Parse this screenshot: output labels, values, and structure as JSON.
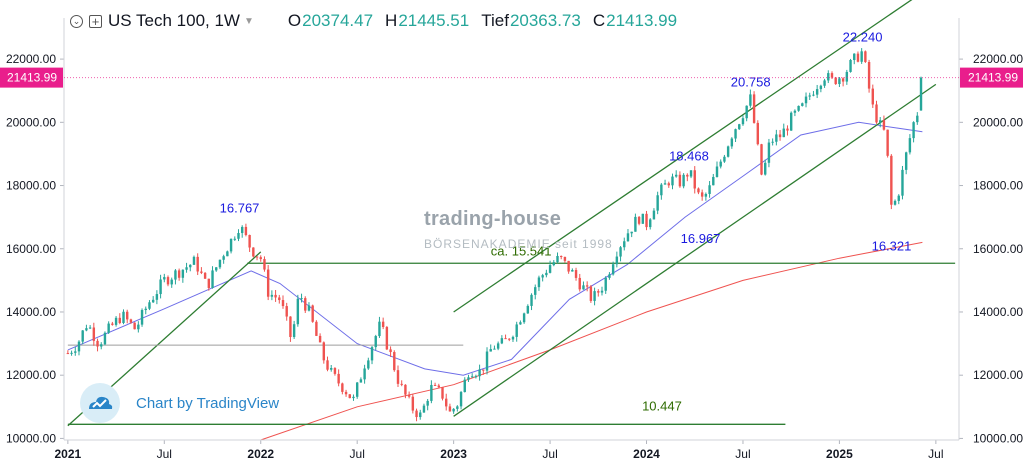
{
  "header": {
    "symbol": "US Tech 100, 1W",
    "o_label": "O",
    "o_value": "20374.47",
    "h_label": "H",
    "h_value": "21445.51",
    "l_label": "Tief",
    "l_value": "20363.73",
    "c_label": "C",
    "c_value": "21413.99",
    "icons": [
      "collapse-icon",
      "add-icon",
      "dropdown-caret-icon"
    ]
  },
  "watermark": {
    "brand": "trading-house",
    "sub": "BÖRSENAKADEMIE seit 1998"
  },
  "credit": {
    "text": "Chart by TradingView",
    "icon": "tradingview-logo-icon"
  },
  "colors": {
    "up": "#26a69a",
    "down": "#ef5350",
    "channel": "#2e7d32",
    "ma_short": "#6e6ee8",
    "ma_long": "#ef5350",
    "price_tag": "#e91e8c",
    "label_blue": "#1a1adf",
    "label_green": "#2e6b00"
  },
  "chart_data": {
    "type": "candlestick",
    "timeframe": "1W",
    "ylim": [
      9950,
      23300
    ],
    "yticks": [
      "22000.00",
      "20000.00",
      "18000.00",
      "16000.00",
      "14000.00",
      "12000.00",
      "10000.00"
    ],
    "yticks_values": [
      22000,
      20000,
      18000,
      16000,
      14000,
      12000,
      10000
    ],
    "xticks": [
      "2021",
      "Jul",
      "2022",
      "Jul",
      "2023",
      "Jul",
      "2024",
      "Jul",
      "2025",
      "Jul"
    ],
    "xticks_values": [
      2021.0,
      2021.5,
      2022.0,
      2022.5,
      2023.0,
      2023.5,
      2024.0,
      2024.5,
      2025.0,
      2025.5
    ],
    "xlim": [
      2020.98,
      2025.62
    ],
    "last_price": "21413.99",
    "last_price_value": 21413.99,
    "price_path": [
      [
        2021.0,
        12700
      ],
      [
        2021.05,
        13000
      ],
      [
        2021.1,
        13650
      ],
      [
        2021.16,
        13000
      ],
      [
        2021.22,
        13500
      ],
      [
        2021.28,
        13900
      ],
      [
        2021.35,
        13450
      ],
      [
        2021.42,
        14300
      ],
      [
        2021.5,
        15000
      ],
      [
        2021.58,
        15300
      ],
      [
        2021.66,
        15600
      ],
      [
        2021.72,
        14800
      ],
      [
        2021.8,
        15800
      ],
      [
        2021.85,
        16300
      ],
      [
        2021.89,
        16767
      ],
      [
        2021.95,
        16000
      ],
      [
        2022.0,
        15700
      ],
      [
        2022.04,
        14600
      ],
      [
        2022.1,
        14400
      ],
      [
        2022.16,
        13100
      ],
      [
        2022.2,
        14600
      ],
      [
        2022.25,
        14000
      ],
      [
        2022.32,
        12600
      ],
      [
        2022.37,
        12000
      ],
      [
        2022.43,
        11600
      ],
      [
        2022.48,
        11200
      ],
      [
        2022.54,
        12400
      ],
      [
        2022.62,
        13600
      ],
      [
        2022.67,
        12700
      ],
      [
        2022.72,
        11700
      ],
      [
        2022.78,
        11000
      ],
      [
        2022.83,
        10700
      ],
      [
        2022.88,
        11600
      ],
      [
        2022.94,
        11400
      ],
      [
        2022.98,
        10800
      ],
      [
        2023.02,
        11100
      ],
      [
        2023.08,
        12200
      ],
      [
        2023.14,
        12100
      ],
      [
        2023.2,
        12900
      ],
      [
        2023.26,
        13000
      ],
      [
        2023.32,
        13500
      ],
      [
        2023.38,
        14300
      ],
      [
        2023.44,
        15000
      ],
      [
        2023.5,
        15500
      ],
      [
        2023.55,
        15700
      ],
      [
        2023.62,
        15200
      ],
      [
        2023.68,
        14700
      ],
      [
        2023.72,
        14400
      ],
      [
        2023.78,
        14900
      ],
      [
        2023.84,
        15900
      ],
      [
        2023.9,
        16500
      ],
      [
        2023.96,
        17000
      ],
      [
        2024.0,
        16800
      ],
      [
        2024.06,
        17700
      ],
      [
        2024.12,
        18200
      ],
      [
        2024.18,
        18100
      ],
      [
        2024.22,
        18468
      ],
      [
        2024.28,
        17500
      ],
      [
        2024.32,
        17800
      ],
      [
        2024.38,
        18700
      ],
      [
        2024.44,
        19600
      ],
      [
        2024.5,
        20300
      ],
      [
        2024.54,
        20758
      ],
      [
        2024.58,
        19000
      ],
      [
        2024.6,
        18200
      ],
      [
        2024.64,
        19400
      ],
      [
        2024.7,
        19600
      ],
      [
        2024.76,
        20200
      ],
      [
        2024.8,
        20400
      ],
      [
        2024.86,
        21000
      ],
      [
        2024.92,
        21500
      ],
      [
        2024.96,
        21300
      ],
      [
        2025.02,
        21500
      ],
      [
        2025.08,
        22000
      ],
      [
        2025.12,
        22240
      ],
      [
        2025.17,
        20500
      ],
      [
        2025.21,
        19900
      ],
      [
        2025.24,
        19600
      ],
      [
        2025.27,
        17300
      ],
      [
        2025.3,
        17600
      ],
      [
        2025.34,
        18800
      ],
      [
        2025.38,
        19900
      ],
      [
        2025.41,
        20400
      ],
      [
        2025.435,
        21414
      ]
    ],
    "moving_averages": [
      {
        "color": "#6e6ee8",
        "points": [
          [
            2021.0,
            12800
          ],
          [
            2021.5,
            14100
          ],
          [
            2021.95,
            15300
          ],
          [
            2022.1,
            14900
          ],
          [
            2022.5,
            13000
          ],
          [
            2022.85,
            12200
          ],
          [
            2023.05,
            12000
          ],
          [
            2023.3,
            12500
          ],
          [
            2023.6,
            14400
          ],
          [
            2023.9,
            15500
          ],
          [
            2024.2,
            17000
          ],
          [
            2024.5,
            18300
          ],
          [
            2024.8,
            19600
          ],
          [
            2025.1,
            20000
          ],
          [
            2025.43,
            19700
          ]
        ]
      },
      {
        "color": "#ef5350",
        "points": [
          [
            2022.0,
            9950
          ],
          [
            2022.5,
            11000
          ],
          [
            2023.0,
            11700
          ],
          [
            2023.5,
            12800
          ],
          [
            2024.0,
            14000
          ],
          [
            2024.5,
            15000
          ],
          [
            2025.0,
            15700
          ],
          [
            2025.43,
            16200
          ]
        ]
      }
    ],
    "lines": [
      {
        "color": "#2e7d32",
        "from": [
          2021.0,
          10400
        ],
        "to": [
          2022.0,
          15900
        ]
      },
      {
        "color": "#2e7d32",
        "from": [
          2023.0,
          10700
        ],
        "to": [
          2025.5,
          21200
        ]
      },
      {
        "color": "#2e7d32",
        "from": [
          2023.0,
          14000
        ],
        "to": [
          2025.5,
          24400
        ]
      },
      {
        "color": "#2e7d32",
        "from": [
          2021.93,
          15541
        ],
        "to": [
          2025.6,
          15541
        ]
      },
      {
        "color": "#2e7d32",
        "from": [
          2021.0,
          10447
        ],
        "to": [
          2024.72,
          10447
        ]
      },
      {
        "color": "#9e9e9e",
        "from": [
          2021.0,
          12950
        ],
        "to": [
          2023.05,
          12950
        ]
      }
    ],
    "annotations": [
      {
        "text": "16.767",
        "x": 2021.89,
        "y": 16767,
        "color": "#1a1adf"
      },
      {
        "text": "18.468",
        "x": 2024.22,
        "y": 18468,
        "color": "#1a1adf"
      },
      {
        "text": "20.758",
        "x": 2024.54,
        "y": 20758,
        "color": "#1a1adf"
      },
      {
        "text": "22.240",
        "x": 2025.12,
        "y": 22240,
        "color": "#1a1adf"
      },
      {
        "text": "16.967",
        "x": 2024.28,
        "y": 16967,
        "color": "#1a1adf"
      },
      {
        "text": "16.321",
        "x": 2025.27,
        "y": 16321,
        "color": "#1a1adf"
      },
      {
        "text": "ca. 15.541",
        "x": 2023.35,
        "y": 15541,
        "color": "#2e6b00"
      },
      {
        "text": "10.447",
        "x": 2024.08,
        "y": 10447,
        "color": "#2e6b00"
      }
    ]
  }
}
